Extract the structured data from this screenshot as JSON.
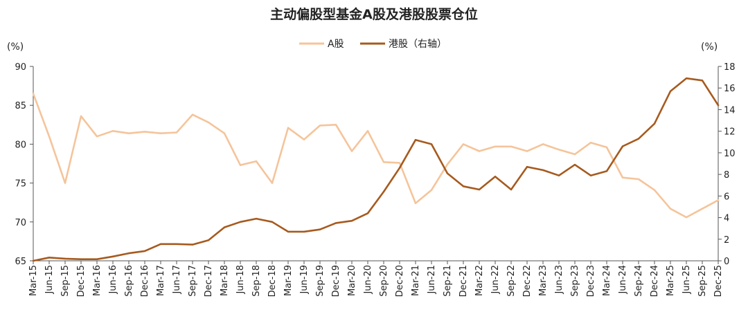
{
  "chart_data": {
    "type": "line",
    "title": "主动偏股型基金A股及港股股票仓位",
    "y_left_unit": "(%)",
    "y_right_unit": "(%)",
    "ylim_left": [
      65,
      90
    ],
    "ylim_right": [
      0,
      18
    ],
    "yticks_left": [
      65,
      70,
      75,
      80,
      85,
      90
    ],
    "yticks_right": [
      0,
      2,
      4,
      6,
      8,
      10,
      12,
      14,
      16,
      18
    ],
    "grid": false,
    "legend_position": "top-center",
    "categories": [
      "Mar-15",
      "Jun-15",
      "Sep-15",
      "Dec-15",
      "Mar-16",
      "Jun-16",
      "Sep-16",
      "Dec-16",
      "Mar-17",
      "Jun-17",
      "Sep-17",
      "Dec-17",
      "Mar-18",
      "Jun-18",
      "Sep-18",
      "Dec-18",
      "Mar-19",
      "Jun-19",
      "Sep-19",
      "Dec-19",
      "Mar-20",
      "Jun-20",
      "Sep-20",
      "Dec-20",
      "Mar-21",
      "Jun-21",
      "Sep-21",
      "Dec-21",
      "Mar-22",
      "Jun-22",
      "Sep-22",
      "Dec-22",
      "Mar-23",
      "Jun-23",
      "Sep-23",
      "Dec-23",
      "Mar-24",
      "Jun-24",
      "Sep-24",
      "Dec-24",
      "Mar-25",
      "Jun-25",
      "Sep-25",
      "Dec-25"
    ],
    "series": [
      {
        "name": "A股",
        "axis": "left",
        "color": "#F5C49A",
        "values": [
          86.5,
          81.0,
          75.0,
          83.6,
          81.0,
          81.7,
          81.4,
          81.6,
          81.4,
          81.5,
          83.8,
          82.8,
          81.4,
          77.3,
          77.8,
          75.0,
          82.1,
          80.6,
          82.4,
          82.5,
          79.1,
          81.7,
          77.7,
          77.6,
          72.4,
          74.1,
          77.4,
          80.0,
          79.1,
          79.7,
          79.7,
          79.1,
          80.0,
          79.3,
          78.7,
          80.2,
          79.6,
          75.7,
          75.5,
          74.1,
          71.7,
          70.6,
          71.7,
          72.8
        ]
      },
      {
        "name": "港股（右轴）",
        "axis": "right",
        "color": "#A65A1E",
        "values": [
          0.0,
          0.3,
          0.2,
          0.15,
          0.15,
          0.4,
          0.7,
          0.9,
          1.55,
          1.55,
          1.5,
          1.9,
          3.1,
          3.6,
          3.9,
          3.6,
          2.7,
          2.7,
          2.9,
          3.5,
          3.7,
          4.4,
          6.4,
          8.6,
          11.2,
          10.8,
          8.1,
          6.9,
          6.6,
          7.8,
          6.6,
          8.7,
          8.4,
          7.9,
          8.9,
          7.9,
          8.3,
          10.6,
          11.3,
          12.7,
          15.7,
          16.9,
          16.7,
          14.4
        ]
      }
    ]
  }
}
